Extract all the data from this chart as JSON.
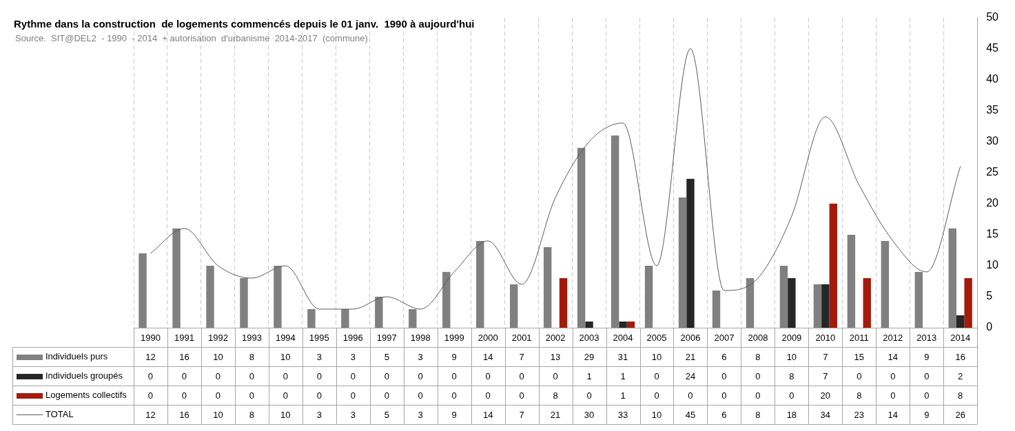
{
  "chart_data": {
    "type": "bar",
    "title": "Rythme dans la construction  de logements commencés depuis le 01 janv.  1990 à aujourd'hui",
    "subtitle": "Source.  SIT@DEL2  - 1990  - 2014  + autorisation  d'urbanisme  2014-2017  (commune)",
    "categories": [
      "1990",
      "1991",
      "1992",
      "1993",
      "1994",
      "1995",
      "1996",
      "1997",
      "1998",
      "1999",
      "2000",
      "2001",
      "2002",
      "2003",
      "2004",
      "2005",
      "2006",
      "2007",
      "2008",
      "2009",
      "2010",
      "2011",
      "2012",
      "2013",
      "2014"
    ],
    "series": [
      {
        "name": "Individuels purs",
        "color": "#808080",
        "values": [
          12,
          16,
          10,
          8,
          10,
          3,
          3,
          5,
          3,
          9,
          14,
          7,
          13,
          29,
          31,
          10,
          21,
          6,
          8,
          10,
          7,
          15,
          14,
          9,
          16
        ]
      },
      {
        "name": "Individuels groupés",
        "color": "#262626",
        "values": [
          0,
          0,
          0,
          0,
          0,
          0,
          0,
          0,
          0,
          0,
          0,
          0,
          0,
          1,
          1,
          0,
          24,
          0,
          0,
          8,
          7,
          0,
          0,
          0,
          2
        ]
      },
      {
        "name": "Logements collectifs",
        "color": "#a51b0b",
        "values": [
          0,
          0,
          0,
          0,
          0,
          0,
          0,
          0,
          0,
          0,
          0,
          0,
          8,
          0,
          1,
          0,
          0,
          0,
          0,
          0,
          20,
          8,
          0,
          0,
          8
        ]
      },
      {
        "name": "TOTAL",
        "type": "line",
        "color": "#595959",
        "marker": "none",
        "line_style": "solid",
        "values": [
          12,
          16,
          10,
          8,
          10,
          3,
          3,
          5,
          3,
          9,
          14,
          7,
          21,
          30,
          33,
          10,
          45,
          6,
          8,
          18,
          34,
          23,
          14,
          9,
          26
        ]
      }
    ],
    "ylim": [
      0,
      50
    ],
    "yticks": [
      0,
      5,
      10,
      15,
      20,
      25,
      30,
      35,
      40,
      45,
      50
    ],
    "grid": "x",
    "legend": "bottom left",
    "data_labels": true
  }
}
